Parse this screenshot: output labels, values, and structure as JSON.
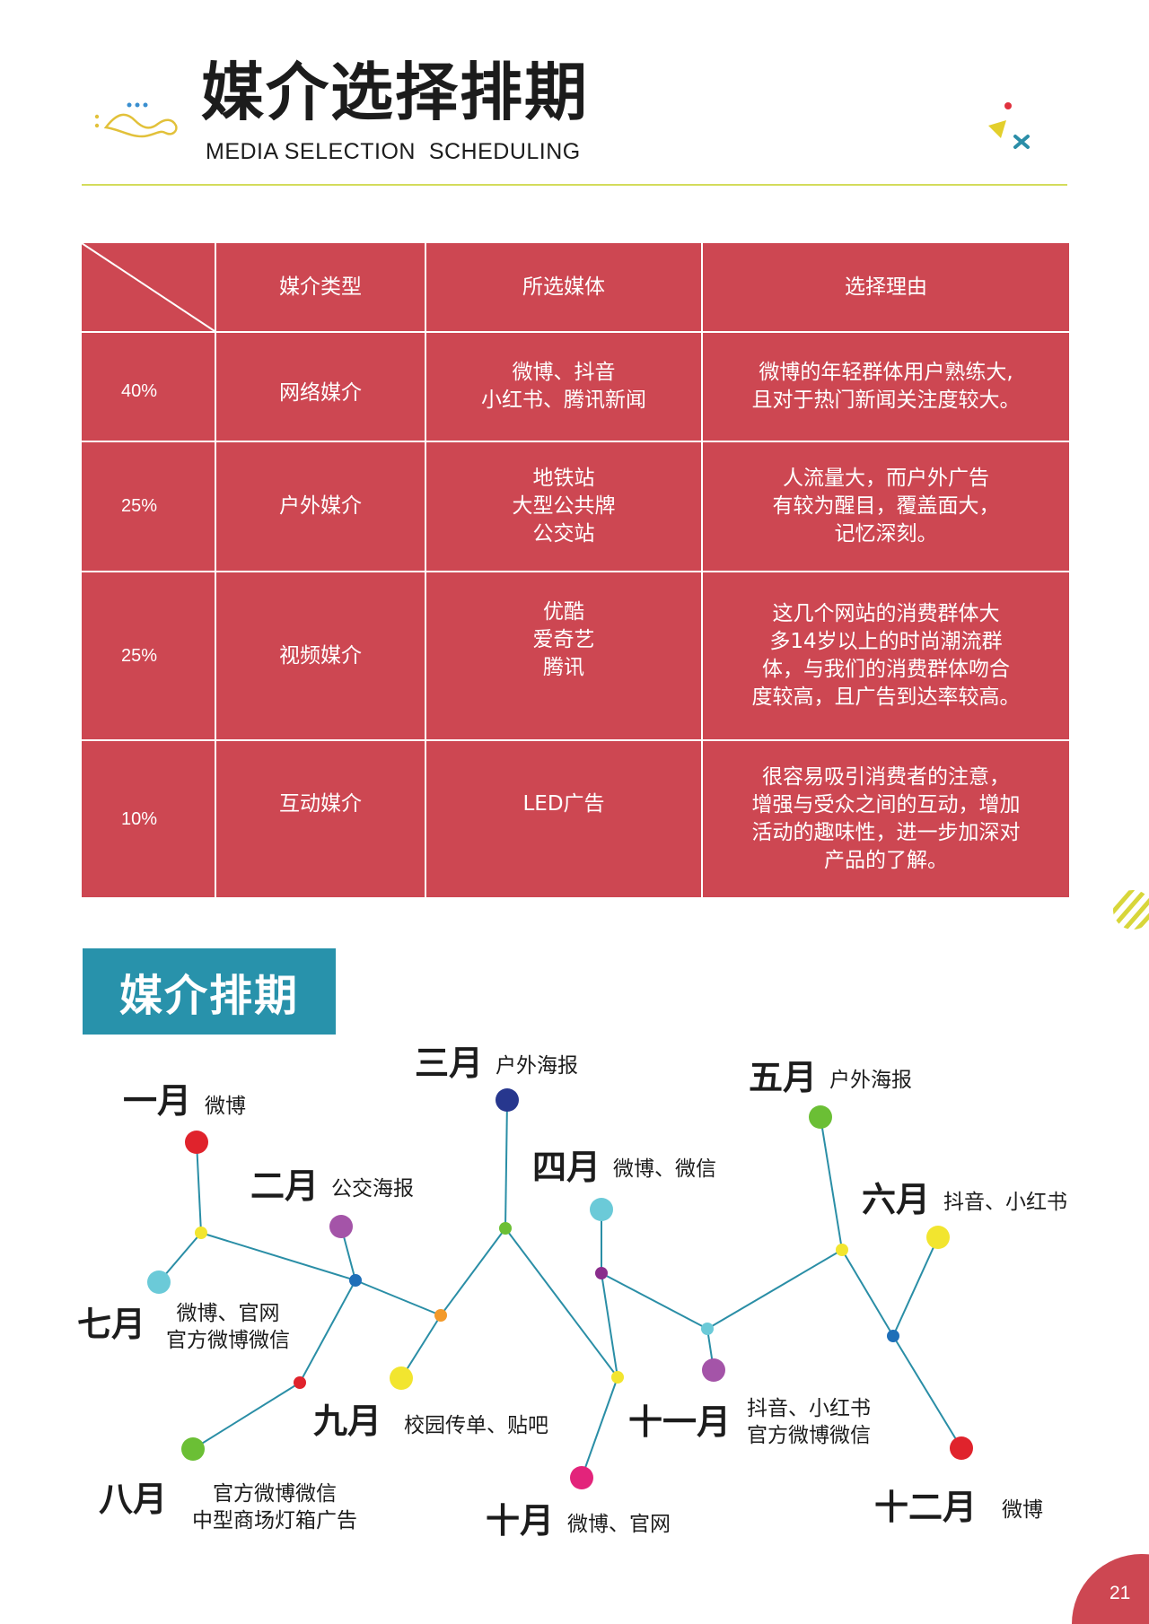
{
  "header": {
    "title": "媒介选择排期",
    "subtitle": "MEDIA SELECTION  SCHEDULING"
  },
  "table": {
    "headers": [
      "媒介类型",
      "所选媒体",
      "选择理由"
    ],
    "rows": [
      {
        "percent": "40%",
        "type": "网络媒介",
        "media": "微博、抖音\n小红书、腾讯新闻",
        "reason": "微博的年轻群体用户熟练大,\n且对于热门新闻关注度较大。"
      },
      {
        "percent": "25%",
        "type": "户外媒介",
        "media": "地铁站\n大型公共牌\n公交站",
        "reason": "人流量大，而户外广告\n有较为醒目，覆盖面大，\n记忆深刻。"
      },
      {
        "percent": "25%",
        "type": "视频媒介",
        "media": "优酷\n爱奇艺\n腾讯",
        "reason": "这几个网站的消费群体大\n多14岁以上的时尚潮流群\n体，与我们的消费群体吻合\n度较高，且广告到达率较高。"
      },
      {
        "percent": "10%",
        "type": "互动媒介",
        "media": "LED广告",
        "reason": "很容易吸引消费者的注意，\n增强与受众之间的互动，增加\n活动的趣味性，进一步加深对\n产品的了解。"
      }
    ]
  },
  "schedule": {
    "label": "媒介排期",
    "months": [
      {
        "month": "一月",
        "media": "微博"
      },
      {
        "month": "二月",
        "media": "公交海报"
      },
      {
        "month": "三月",
        "media": "户外海报"
      },
      {
        "month": "四月",
        "media": "微博、微信"
      },
      {
        "month": "五月",
        "media": "户外海报"
      },
      {
        "month": "六月",
        "media": "抖音、小红书"
      },
      {
        "month": "七月",
        "media": "微博、官网\n官方微博微信"
      },
      {
        "month": "八月",
        "media": "官方微博微信\n中型商场灯箱广告"
      },
      {
        "month": "九月",
        "media": "校园传单、贴吧"
      },
      {
        "month": "十月",
        "media": "微博、官网"
      },
      {
        "month": "十一月",
        "media": "抖音、小红书\n官方微博微信"
      },
      {
        "month": "十二月",
        "media": "微博"
      }
    ]
  },
  "colors": {
    "table_bg": "#cd4752",
    "label_bg": "#2892ab",
    "rule": "#d3dc5b",
    "network_line": "#2a8ea6",
    "page_circle": "#cd4752"
  },
  "page": {
    "number": "21"
  }
}
